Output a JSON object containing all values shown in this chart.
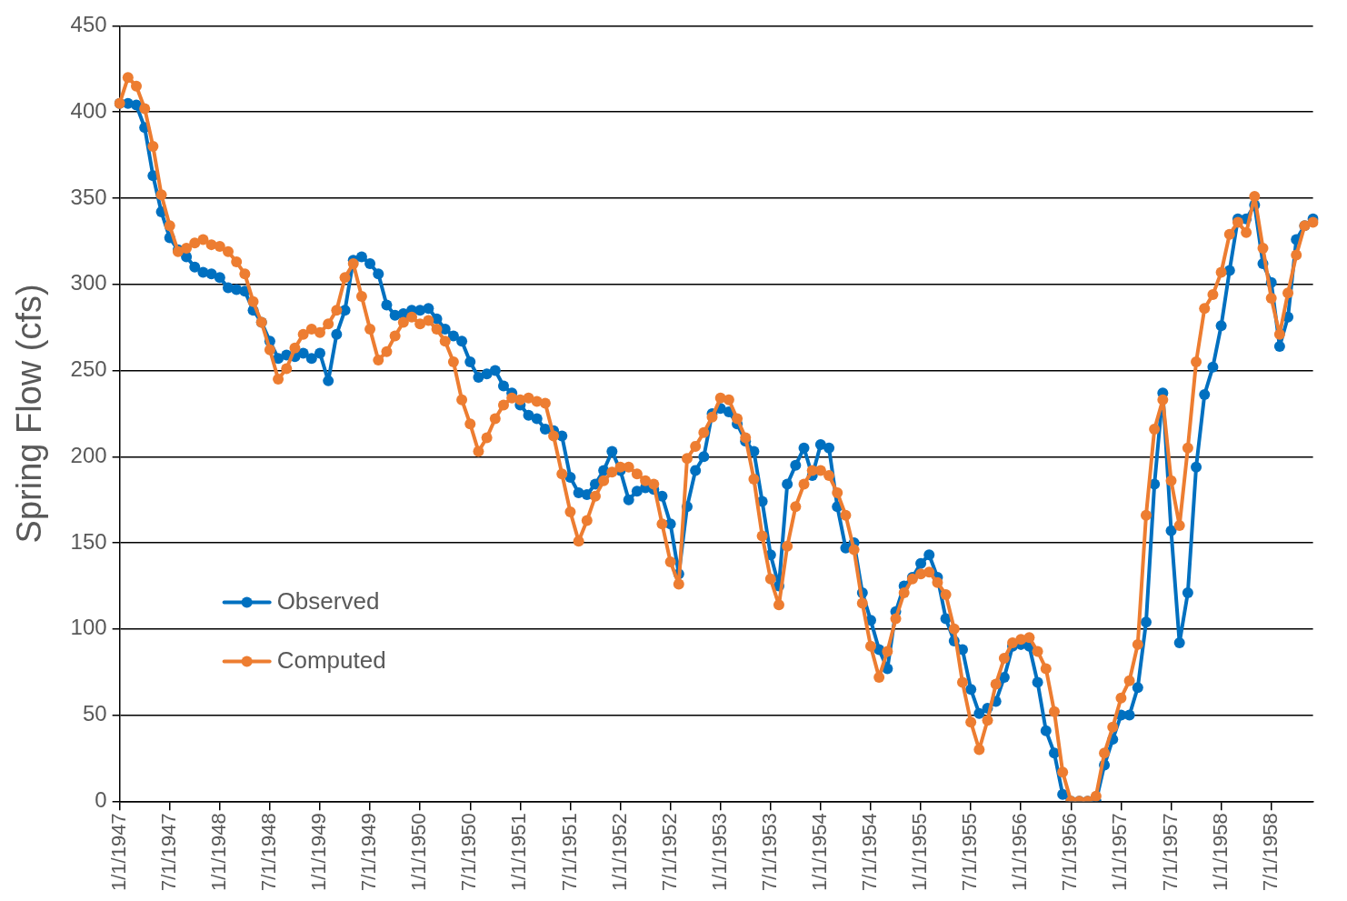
{
  "chart_data": {
    "type": "line",
    "ylabel": "Spring Flow (cfs)",
    "categories": [
      "1/1/1947",
      null,
      null,
      null,
      null,
      null,
      "7/1/1947",
      null,
      null,
      null,
      null,
      null,
      "1/1/1948",
      null,
      null,
      null,
      null,
      null,
      "7/1/1948",
      null,
      null,
      null,
      null,
      null,
      "1/1/1949",
      null,
      null,
      null,
      null,
      null,
      "7/1/1949",
      null,
      null,
      null,
      null,
      null,
      "1/1/1950",
      null,
      null,
      null,
      null,
      null,
      "7/1/1950",
      null,
      null,
      null,
      null,
      null,
      "1/1/1951",
      null,
      null,
      null,
      null,
      null,
      "7/1/1951",
      null,
      null,
      null,
      null,
      null,
      "1/1/1952",
      null,
      null,
      null,
      null,
      null,
      "7/1/1952",
      null,
      null,
      null,
      null,
      null,
      "1/1/1953",
      null,
      null,
      null,
      null,
      null,
      "7/1/1953",
      null,
      null,
      null,
      null,
      null,
      "1/1/1954",
      null,
      null,
      null,
      null,
      null,
      "7/1/1954",
      null,
      null,
      null,
      null,
      null,
      "1/1/1955",
      null,
      null,
      null,
      null,
      null,
      "7/1/1955",
      null,
      null,
      null,
      null,
      null,
      "1/1/1956",
      null,
      null,
      null,
      null,
      null,
      "7/1/1956",
      null,
      null,
      null,
      null,
      null,
      "1/1/1957",
      null,
      null,
      null,
      null,
      null,
      "7/1/1957",
      null,
      null,
      null,
      null,
      null,
      "1/1/1958",
      null,
      null,
      null,
      null,
      null,
      "7/1/1958",
      null,
      null,
      null,
      null,
      null
    ],
    "series": [
      {
        "name": "Observed",
        "color": "#0070c0",
        "values": [
          405,
          405,
          404,
          391,
          363,
          342,
          327,
          320,
          316,
          310,
          307,
          306,
          304,
          298,
          297,
          296,
          285,
          278,
          267,
          257,
          259,
          258,
          260,
          257,
          260,
          244,
          271,
          285,
          314,
          316,
          312,
          306,
          288,
          282,
          283,
          285,
          285,
          286,
          280,
          274,
          270,
          267,
          255,
          246,
          248,
          250,
          241,
          237,
          230,
          224,
          222,
          216,
          215,
          212,
          188,
          179,
          178,
          184,
          192,
          203,
          192,
          175,
          180,
          182,
          181,
          177,
          161,
          132,
          171,
          192,
          200,
          225,
          228,
          226,
          219,
          209,
          203,
          174,
          143,
          125,
          184,
          195,
          205,
          189,
          207,
          205,
          171,
          147,
          150,
          121,
          105,
          88,
          77,
          110,
          125,
          130,
          138,
          143,
          130,
          106,
          93,
          88,
          65,
          51,
          54,
          58,
          72,
          90,
          91,
          90,
          69,
          41,
          28,
          4,
          0,
          0,
          0,
          0,
          21,
          36,
          50,
          50,
          66,
          104,
          184,
          237,
          157,
          92,
          121,
          194,
          236,
          252,
          276,
          308,
          338,
          338,
          346,
          312,
          301,
          264,
          281,
          326,
          334,
          338
        ]
      },
      {
        "name": "Computed",
        "color": "#ed7d31",
        "values": [
          405,
          420,
          415,
          402,
          380,
          352,
          334,
          319,
          321,
          324,
          326,
          323,
          322,
          319,
          313,
          306,
          290,
          278,
          262,
          245,
          251,
          263,
          271,
          274,
          272,
          277,
          285,
          304,
          312,
          293,
          274,
          256,
          261,
          270,
          278,
          281,
          277,
          279,
          274,
          267,
          255,
          233,
          219,
          203,
          211,
          222,
          230,
          234,
          233,
          234,
          232,
          231,
          212,
          190,
          168,
          151,
          163,
          177,
          186,
          191,
          194,
          194,
          190,
          186,
          184,
          161,
          139,
          126,
          199,
          206,
          214,
          223,
          234,
          233,
          222,
          211,
          187,
          154,
          129,
          114,
          148,
          171,
          184,
          192,
          192,
          189,
          179,
          166,
          146,
          115,
          90,
          72,
          87,
          106,
          121,
          129,
          132,
          133,
          127,
          120,
          100,
          69,
          46,
          30,
          47,
          68,
          83,
          92,
          94,
          95,
          87,
          77,
          52,
          17,
          0,
          0,
          0,
          3,
          28,
          43,
          60,
          70,
          91,
          166,
          216,
          233,
          186,
          160,
          205,
          255,
          286,
          294,
          307,
          329,
          336,
          330,
          351,
          321,
          292,
          271,
          295,
          317,
          334,
          336
        ]
      }
    ],
    "ylim": [
      0,
      450
    ],
    "yticks": [
      0,
      50,
      100,
      150,
      200,
      250,
      300,
      350,
      400,
      450
    ],
    "grid": "y",
    "legend": "left",
    "marker": "circle",
    "line_style": "solid"
  }
}
